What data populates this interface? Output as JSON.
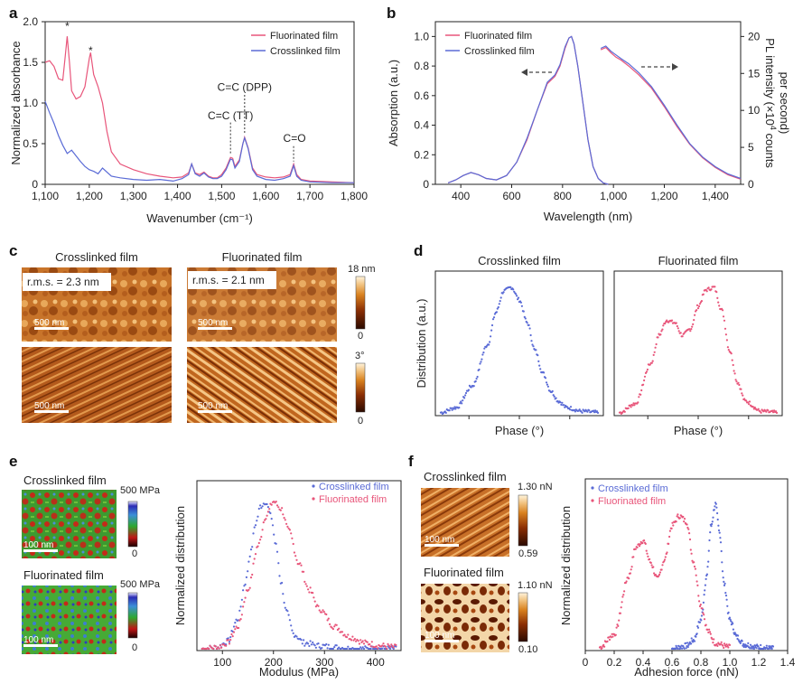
{
  "panels": {
    "a": "a",
    "b": "b",
    "c": "c",
    "d": "d",
    "e": "e",
    "f": "f"
  },
  "colors": {
    "fluorinated": "#e8557a",
    "crosslinked": "#5a6bd6"
  },
  "legend": {
    "fluorinated": "Fluorinated film",
    "crosslinked": "Crosslinked film"
  },
  "chart_data": [
    {
      "id": "a",
      "type": "line",
      "xlabel": "Wavenumber (cm⁻¹)",
      "ylabel": "Normalized absorbance",
      "xlim": [
        1100,
        1800
      ],
      "ylim": [
        0,
        2.0
      ],
      "xticks": [
        1100,
        1200,
        1300,
        1400,
        1500,
        1600,
        1700,
        1800
      ],
      "xtick_labels": [
        "1,100",
        "1,200",
        "1,300",
        "1,400",
        "1,500",
        "1,600",
        "1,700",
        "1,800"
      ],
      "yticks": [
        0,
        0.5,
        1.0,
        1.5,
        2.0
      ],
      "ytick_labels": [
        "0",
        "0.5",
        "1.0",
        "1.5",
        "2.0"
      ],
      "annotations": [
        {
          "text": "*",
          "x": 1150,
          "y": 1.9
        },
        {
          "text": "*",
          "x": 1203,
          "y": 1.6
        },
        {
          "text": "C=C (TT)",
          "x": 1520,
          "y": 0.8
        },
        {
          "text": "C=C (DPP)",
          "x": 1552,
          "y": 1.15
        },
        {
          "text": "C=O",
          "x": 1665,
          "y": 0.52
        }
      ],
      "series": [
        {
          "name": "Fluorinated film",
          "color": "#e8557a",
          "x": [
            1100,
            1110,
            1120,
            1130,
            1140,
            1145,
            1150,
            1155,
            1160,
            1170,
            1180,
            1190,
            1200,
            1203,
            1210,
            1220,
            1230,
            1240,
            1250,
            1270,
            1300,
            1330,
            1360,
            1390,
            1410,
            1425,
            1432,
            1440,
            1450,
            1460,
            1470,
            1480,
            1490,
            1500,
            1510,
            1520,
            1525,
            1530,
            1540,
            1548,
            1552,
            1560,
            1570,
            1580,
            1600,
            1620,
            1640,
            1655,
            1663,
            1670,
            1680,
            1700,
            1750,
            1800
          ],
          "y": [
            1.5,
            1.52,
            1.45,
            1.3,
            1.28,
            1.55,
            1.82,
            1.5,
            1.15,
            1.05,
            1.08,
            1.2,
            1.55,
            1.62,
            1.35,
            1.2,
            1.0,
            0.65,
            0.4,
            0.25,
            0.18,
            0.13,
            0.1,
            0.08,
            0.09,
            0.14,
            0.25,
            0.14,
            0.12,
            0.15,
            0.1,
            0.08,
            0.08,
            0.12,
            0.2,
            0.33,
            0.32,
            0.22,
            0.3,
            0.5,
            0.58,
            0.45,
            0.2,
            0.12,
            0.09,
            0.08,
            0.09,
            0.12,
            0.25,
            0.12,
            0.06,
            0.04,
            0.03,
            0.02
          ]
        },
        {
          "name": "Crosslinked film",
          "color": "#5a6bd6",
          "x": [
            1100,
            1110,
            1120,
            1130,
            1140,
            1150,
            1160,
            1170,
            1180,
            1190,
            1200,
            1210,
            1220,
            1230,
            1250,
            1270,
            1300,
            1330,
            1360,
            1390,
            1410,
            1425,
            1432,
            1440,
            1450,
            1460,
            1470,
            1480,
            1490,
            1500,
            1510,
            1520,
            1525,
            1530,
            1540,
            1548,
            1552,
            1560,
            1570,
            1580,
            1600,
            1620,
            1640,
            1655,
            1663,
            1670,
            1680,
            1700,
            1750,
            1800
          ],
          "y": [
            1.02,
            0.88,
            0.75,
            0.6,
            0.48,
            0.38,
            0.42,
            0.35,
            0.28,
            0.22,
            0.18,
            0.16,
            0.13,
            0.2,
            0.1,
            0.08,
            0.06,
            0.05,
            0.06,
            0.04,
            0.07,
            0.12,
            0.25,
            0.13,
            0.1,
            0.14,
            0.09,
            0.07,
            0.07,
            0.1,
            0.18,
            0.31,
            0.3,
            0.2,
            0.28,
            0.5,
            0.57,
            0.44,
            0.18,
            0.1,
            0.06,
            0.05,
            0.07,
            0.1,
            0.23,
            0.1,
            0.05,
            0.03,
            0.02,
            0.02
          ]
        }
      ]
    },
    {
      "id": "b",
      "type": "line",
      "xlabel": "Wavelength (nm)",
      "ylabel": "Absorption (a.u.)",
      "ylabel2": "PL intensity (×10⁴ counts per second)",
      "ylabel2_line1": "PL intensity (×10",
      "ylabel2_sup": "4",
      "ylabel2_line1b": " counts",
      "ylabel2_line2": "per second)",
      "xlim": [
        300,
        1500
      ],
      "ylim": [
        0,
        1.1
      ],
      "y2lim": [
        0,
        22
      ],
      "xticks": [
        400,
        600,
        800,
        1000,
        1200,
        1400
      ],
      "xtick_labels": [
        "400",
        "600",
        "800",
        "1,000",
        "1,200",
        "1,400"
      ],
      "yticks": [
        0,
        0.2,
        0.4,
        0.6,
        0.8,
        1.0
      ],
      "ytick_labels": [
        "0",
        "0.2",
        "0.4",
        "0.6",
        "0.8",
        "1.0"
      ],
      "y2ticks": [
        0,
        5,
        10,
        15,
        20
      ],
      "y2tick_labels": [
        "0",
        "5",
        "10",
        "15",
        "20"
      ],
      "series": [
        {
          "name": "Fluorinated film",
          "color": "#e8557a",
          "axis": "left",
          "x": [
            350,
            380,
            410,
            440,
            470,
            500,
            540,
            580,
            620,
            660,
            700,
            740,
            770,
            790,
            810,
            825,
            835,
            845,
            860,
            880,
            900,
            920,
            940,
            960,
            980
          ],
          "y": [
            0.01,
            0.03,
            0.06,
            0.08,
            0.065,
            0.04,
            0.03,
            0.06,
            0.15,
            0.3,
            0.5,
            0.68,
            0.73,
            0.8,
            0.92,
            0.99,
            1.0,
            0.95,
            0.8,
            0.55,
            0.3,
            0.12,
            0.04,
            0.01,
            0.0
          ]
        },
        {
          "name": "Crosslinked film",
          "color": "#5a6bd6",
          "axis": "left",
          "x": [
            350,
            380,
            410,
            440,
            470,
            500,
            540,
            580,
            620,
            660,
            700,
            740,
            770,
            790,
            810,
            825,
            835,
            845,
            860,
            880,
            900,
            920,
            940,
            960,
            980
          ],
          "y": [
            0.01,
            0.03,
            0.06,
            0.08,
            0.065,
            0.04,
            0.03,
            0.06,
            0.15,
            0.31,
            0.5,
            0.69,
            0.74,
            0.81,
            0.93,
            0.99,
            1.0,
            0.95,
            0.8,
            0.55,
            0.3,
            0.12,
            0.04,
            0.01,
            0.0
          ]
        },
        {
          "name": "Fluorinated film PL",
          "color": "#e8557a",
          "axis": "right",
          "x": [
            950,
            970,
            990,
            1010,
            1030,
            1060,
            1100,
            1150,
            1200,
            1250,
            1300,
            1350,
            1400,
            1450,
            1500
          ],
          "y": [
            18.2,
            18.5,
            17.8,
            17.2,
            16.8,
            16.0,
            14.8,
            13.0,
            10.5,
            7.8,
            5.4,
            3.6,
            2.3,
            1.3,
            0.7
          ]
        },
        {
          "name": "Crosslinked film PL",
          "color": "#5a6bd6",
          "axis": "right",
          "x": [
            950,
            970,
            990,
            1010,
            1030,
            1060,
            1100,
            1150,
            1200,
            1250,
            1300,
            1350,
            1400,
            1450,
            1500
          ],
          "y": [
            18.4,
            18.7,
            18.0,
            17.5,
            17.0,
            16.3,
            15.1,
            13.2,
            10.7,
            8.0,
            5.5,
            3.7,
            2.4,
            1.4,
            0.8
          ]
        }
      ],
      "arrows": [
        {
          "direction": "left",
          "x": [
            640,
            760
          ],
          "y": 0.76
        },
        {
          "direction": "right",
          "x": [
            1090,
            1220
          ],
          "y": 0.79
        }
      ]
    },
    {
      "id": "d",
      "type": "scatter",
      "ylabel": "Distribution (a.u.)",
      "xlabel": "Phase (°)",
      "subplots": [
        {
          "title": "Crosslinked film",
          "color": "#5a6bd6",
          "x": [
            0,
            0.1,
            0.2,
            0.3,
            0.35,
            0.4,
            0.45,
            0.5,
            0.55,
            0.6,
            0.65,
            0.7,
            0.75,
            0.8,
            0.9,
            1.0
          ],
          "y": [
            0.01,
            0.05,
            0.22,
            0.55,
            0.8,
            0.97,
            1.0,
            0.9,
            0.72,
            0.5,
            0.32,
            0.18,
            0.1,
            0.05,
            0.02,
            0.01
          ]
        },
        {
          "title": "Fluorinated film",
          "color": "#e8557a",
          "x": [
            0,
            0.1,
            0.2,
            0.25,
            0.3,
            0.35,
            0.4,
            0.45,
            0.5,
            0.55,
            0.6,
            0.65,
            0.7,
            0.75,
            0.8,
            0.9,
            1.0
          ],
          "y": [
            0.01,
            0.08,
            0.4,
            0.62,
            0.74,
            0.72,
            0.62,
            0.67,
            0.85,
            0.98,
            1.0,
            0.82,
            0.5,
            0.25,
            0.1,
            0.02,
            0.01
          ]
        }
      ]
    },
    {
      "id": "e",
      "type": "scatter",
      "xlabel": "Modulus (MPa)",
      "ylabel": "Normalized distribution",
      "xlim": [
        50,
        450
      ],
      "xticks": [
        100,
        200,
        300,
        400
      ],
      "xtick_labels": [
        "100",
        "200",
        "300",
        "400"
      ],
      "series": [
        {
          "name": "Crosslinked film",
          "color": "#5a6bd6",
          "x": [
            60,
            90,
            110,
            130,
            145,
            155,
            165,
            175,
            185,
            195,
            205,
            215,
            225,
            240,
            260,
            290,
            320,
            360,
            400,
            440
          ],
          "y": [
            0.0,
            0.01,
            0.05,
            0.2,
            0.45,
            0.65,
            0.85,
            0.97,
            1.0,
            0.9,
            0.7,
            0.45,
            0.25,
            0.1,
            0.04,
            0.02,
            0.01,
            0.0,
            0.0,
            0.0
          ]
        },
        {
          "name": "Fluorinated film",
          "color": "#e8557a",
          "x": [
            60,
            90,
            110,
            130,
            150,
            170,
            185,
            200,
            215,
            230,
            250,
            270,
            290,
            320,
            350,
            380,
            410,
            440
          ],
          "y": [
            0.0,
            0.01,
            0.04,
            0.15,
            0.4,
            0.7,
            0.9,
            1.0,
            0.95,
            0.8,
            0.58,
            0.4,
            0.27,
            0.15,
            0.08,
            0.04,
            0.02,
            0.01
          ]
        }
      ]
    },
    {
      "id": "f",
      "type": "scatter",
      "xlabel": "Adhesion force (nN)",
      "ylabel": "Normalized distribution",
      "xlim": [
        0,
        1.4
      ],
      "xticks": [
        0,
        0.2,
        0.4,
        0.6,
        0.8,
        1.0,
        1.2,
        1.4
      ],
      "xtick_labels": [
        "0",
        "0.2",
        "0.4",
        "0.6",
        "0.8",
        "1.0",
        "1.2",
        "1.4"
      ],
      "series": [
        {
          "name": "Crosslinked film",
          "color": "#5a6bd6",
          "x": [
            0.6,
            0.7,
            0.75,
            0.8,
            0.84,
            0.87,
            0.9,
            0.93,
            0.96,
            1.0,
            1.05,
            1.1,
            1.2,
            1.3
          ],
          "y": [
            0.0,
            0.02,
            0.06,
            0.2,
            0.5,
            0.85,
            1.0,
            0.8,
            0.45,
            0.2,
            0.08,
            0.03,
            0.01,
            0.0
          ]
        },
        {
          "name": "Fluorinated film",
          "color": "#e8557a",
          "x": [
            0.1,
            0.2,
            0.3,
            0.35,
            0.4,
            0.45,
            0.5,
            0.55,
            0.6,
            0.65,
            0.7,
            0.75,
            0.8,
            0.85,
            0.9,
            1.0
          ],
          "y": [
            0.01,
            0.1,
            0.5,
            0.7,
            0.75,
            0.6,
            0.48,
            0.62,
            0.85,
            0.92,
            0.88,
            0.6,
            0.3,
            0.12,
            0.04,
            0.01
          ]
        }
      ]
    }
  ],
  "afm": {
    "c": {
      "titles": [
        "Crosslinked film",
        "Fluorinated film"
      ],
      "rms": [
        "r.m.s. = 2.3 nm",
        "r.m.s. = 2.1 nm"
      ],
      "scale": "500 nm",
      "height_bar": {
        "max": "18 nm",
        "min": "0"
      },
      "phase_bar": {
        "max": "3°",
        "min": "0"
      }
    },
    "e": {
      "titles": [
        "Crosslinked film",
        "Fluorinated film"
      ],
      "scale": "100 nm",
      "bar": {
        "max": "500 MPa",
        "min": "0"
      }
    },
    "f": {
      "titles": [
        "Crosslinked film",
        "Fluorinated film"
      ],
      "scale": "100 nm",
      "bar1": {
        "max": "1.30 nN",
        "min": "0.59"
      },
      "bar2": {
        "max": "1.10 nN",
        "min": "0.10"
      }
    }
  }
}
